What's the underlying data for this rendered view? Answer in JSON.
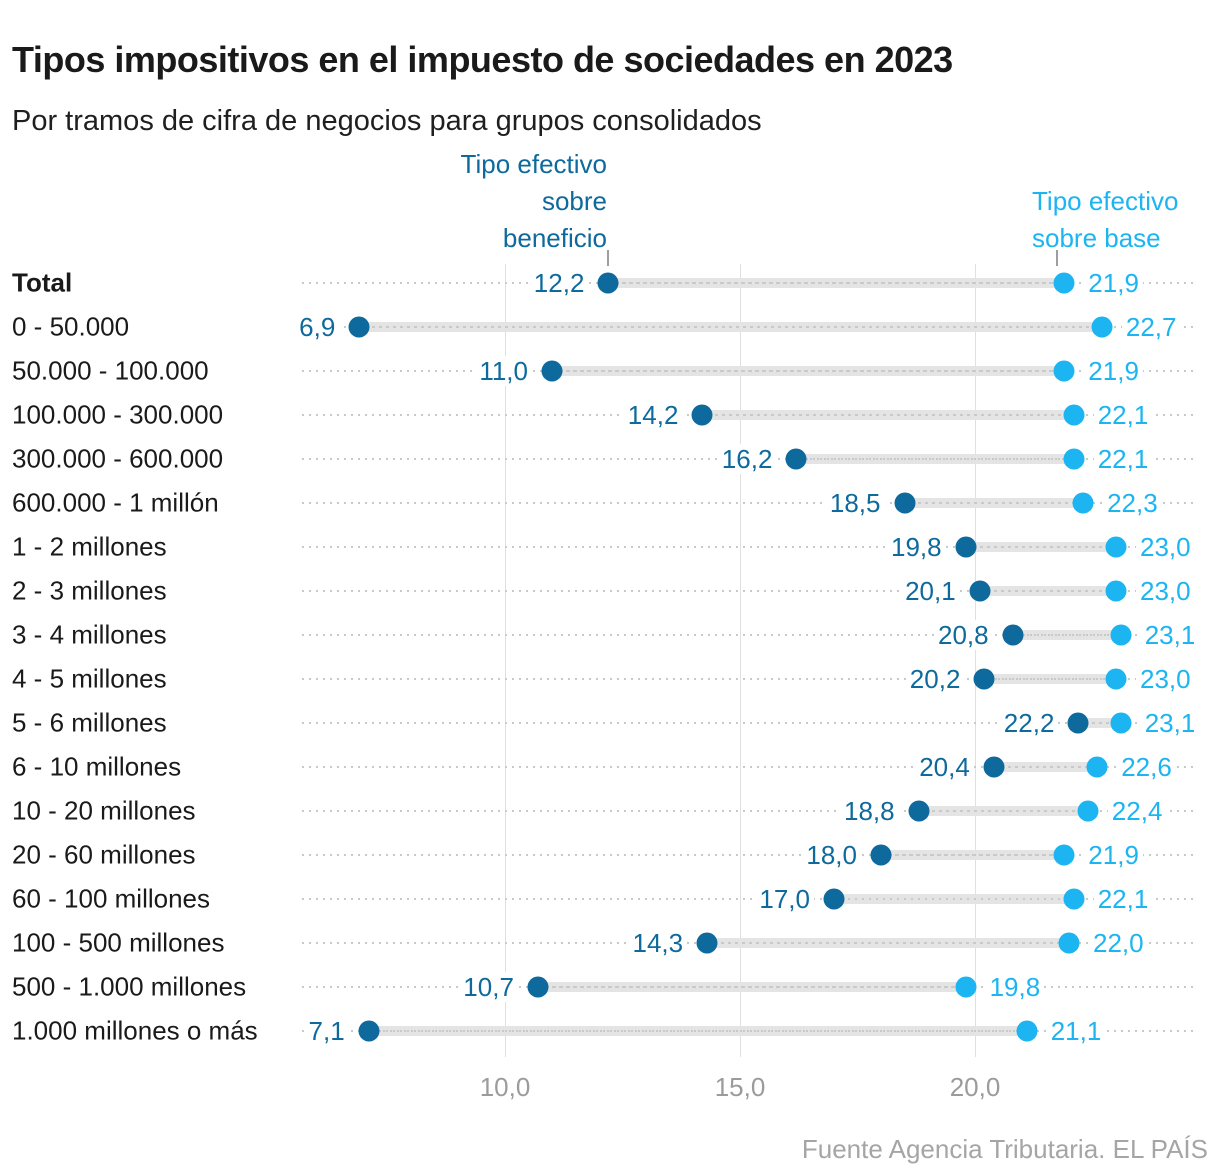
{
  "header": {
    "title": "Tipos impositivos en el impuesto de sociedades en 2023",
    "subtitle": "Por tramos de cifra de negocios para grupos consolidados"
  },
  "legend": {
    "beneficio": {
      "lines": [
        "Tipo efectivo",
        "sobre",
        "beneficio"
      ]
    },
    "base": {
      "lines": [
        "Tipo efectivo",
        "sobre base"
      ]
    }
  },
  "footer": {
    "source": "Fuente Agencia Tributaria. EL PAÍS"
  },
  "chart_data": {
    "type": "dumbbell",
    "title": "Tipos impositivos en el impuesto de sociedades en 2023",
    "subtitle": "Por tramos de cifra de negocios para grupos consolidados",
    "series_names": [
      "Tipo efectivo sobre beneficio",
      "Tipo efectivo sobre base"
    ],
    "colors": {
      "beneficio": "#0e6a9c",
      "base": "#1cb5f1"
    },
    "x_axis": {
      "ticks": [
        {
          "value": 10,
          "label": "10,0"
        },
        {
          "value": 15,
          "label": "15,0"
        },
        {
          "value": 20,
          "label": "20,0"
        }
      ],
      "grid": true
    },
    "legend_pointer_values": {
      "beneficio": 12.2,
      "base": 21.75
    },
    "rows": [
      {
        "category": "Total",
        "bold": true,
        "beneficio": 12.2,
        "beneficio_label": "12,2",
        "base": 21.9,
        "base_label": "21,9"
      },
      {
        "category": "0 - 50.000",
        "bold": false,
        "beneficio": 6.9,
        "beneficio_label": "6,9",
        "base": 22.7,
        "base_label": "22,7"
      },
      {
        "category": "50.000 - 100.000",
        "bold": false,
        "beneficio": 11.0,
        "beneficio_label": "11,0",
        "base": 21.9,
        "base_label": "21,9"
      },
      {
        "category": "100.000 - 300.000",
        "bold": false,
        "beneficio": 14.2,
        "beneficio_label": "14,2",
        "base": 22.1,
        "base_label": "22,1"
      },
      {
        "category": "300.000 - 600.000",
        "bold": false,
        "beneficio": 16.2,
        "beneficio_label": "16,2",
        "base": 22.1,
        "base_label": "22,1"
      },
      {
        "category": "600.000 - 1 millón",
        "bold": false,
        "beneficio": 18.5,
        "beneficio_label": "18,5",
        "base": 22.3,
        "base_label": "22,3"
      },
      {
        "category": "1 - 2 millones",
        "bold": false,
        "beneficio": 19.8,
        "beneficio_label": "19,8",
        "base": 23.0,
        "base_label": "23,0"
      },
      {
        "category": "2 - 3 millones",
        "bold": false,
        "beneficio": 20.1,
        "beneficio_label": "20,1",
        "base": 23.0,
        "base_label": "23,0"
      },
      {
        "category": "3 - 4 millones",
        "bold": false,
        "beneficio": 20.8,
        "beneficio_label": "20,8",
        "base": 23.1,
        "base_label": "23,1"
      },
      {
        "category": "4 - 5 millones",
        "bold": false,
        "beneficio": 20.2,
        "beneficio_label": "20,2",
        "base": 23.0,
        "base_label": "23,0"
      },
      {
        "category": "5 - 6 millones",
        "bold": false,
        "beneficio": 22.2,
        "beneficio_label": "22,2",
        "base": 23.1,
        "base_label": "23,1"
      },
      {
        "category": "6 - 10 millones",
        "bold": false,
        "beneficio": 20.4,
        "beneficio_label": "20,4",
        "base": 22.6,
        "base_label": "22,6"
      },
      {
        "category": "10 - 20 millones",
        "bold": false,
        "beneficio": 18.8,
        "beneficio_label": "18,8",
        "base": 22.4,
        "base_label": "22,4"
      },
      {
        "category": "20 - 60 millones",
        "bold": false,
        "beneficio": 18.0,
        "beneficio_label": "18,0",
        "base": 21.9,
        "base_label": "21,9"
      },
      {
        "category": "60 - 100 millones",
        "bold": false,
        "beneficio": 17.0,
        "beneficio_label": "17,0",
        "base": 22.1,
        "base_label": "22,1"
      },
      {
        "category": "100 - 500 millones",
        "bold": false,
        "beneficio": 14.3,
        "beneficio_label": "14,3",
        "base": 22.0,
        "base_label": "22,0"
      },
      {
        "category": "500 - 1.000 millones",
        "bold": false,
        "beneficio": 10.7,
        "beneficio_label": "10,7",
        "base": 19.8,
        "base_label": "19,8"
      },
      {
        "category": "1.000 millones o más",
        "bold": false,
        "beneficio": 7.1,
        "beneficio_label": "7,1",
        "base": 21.1,
        "base_label": "21,1"
      }
    ]
  }
}
